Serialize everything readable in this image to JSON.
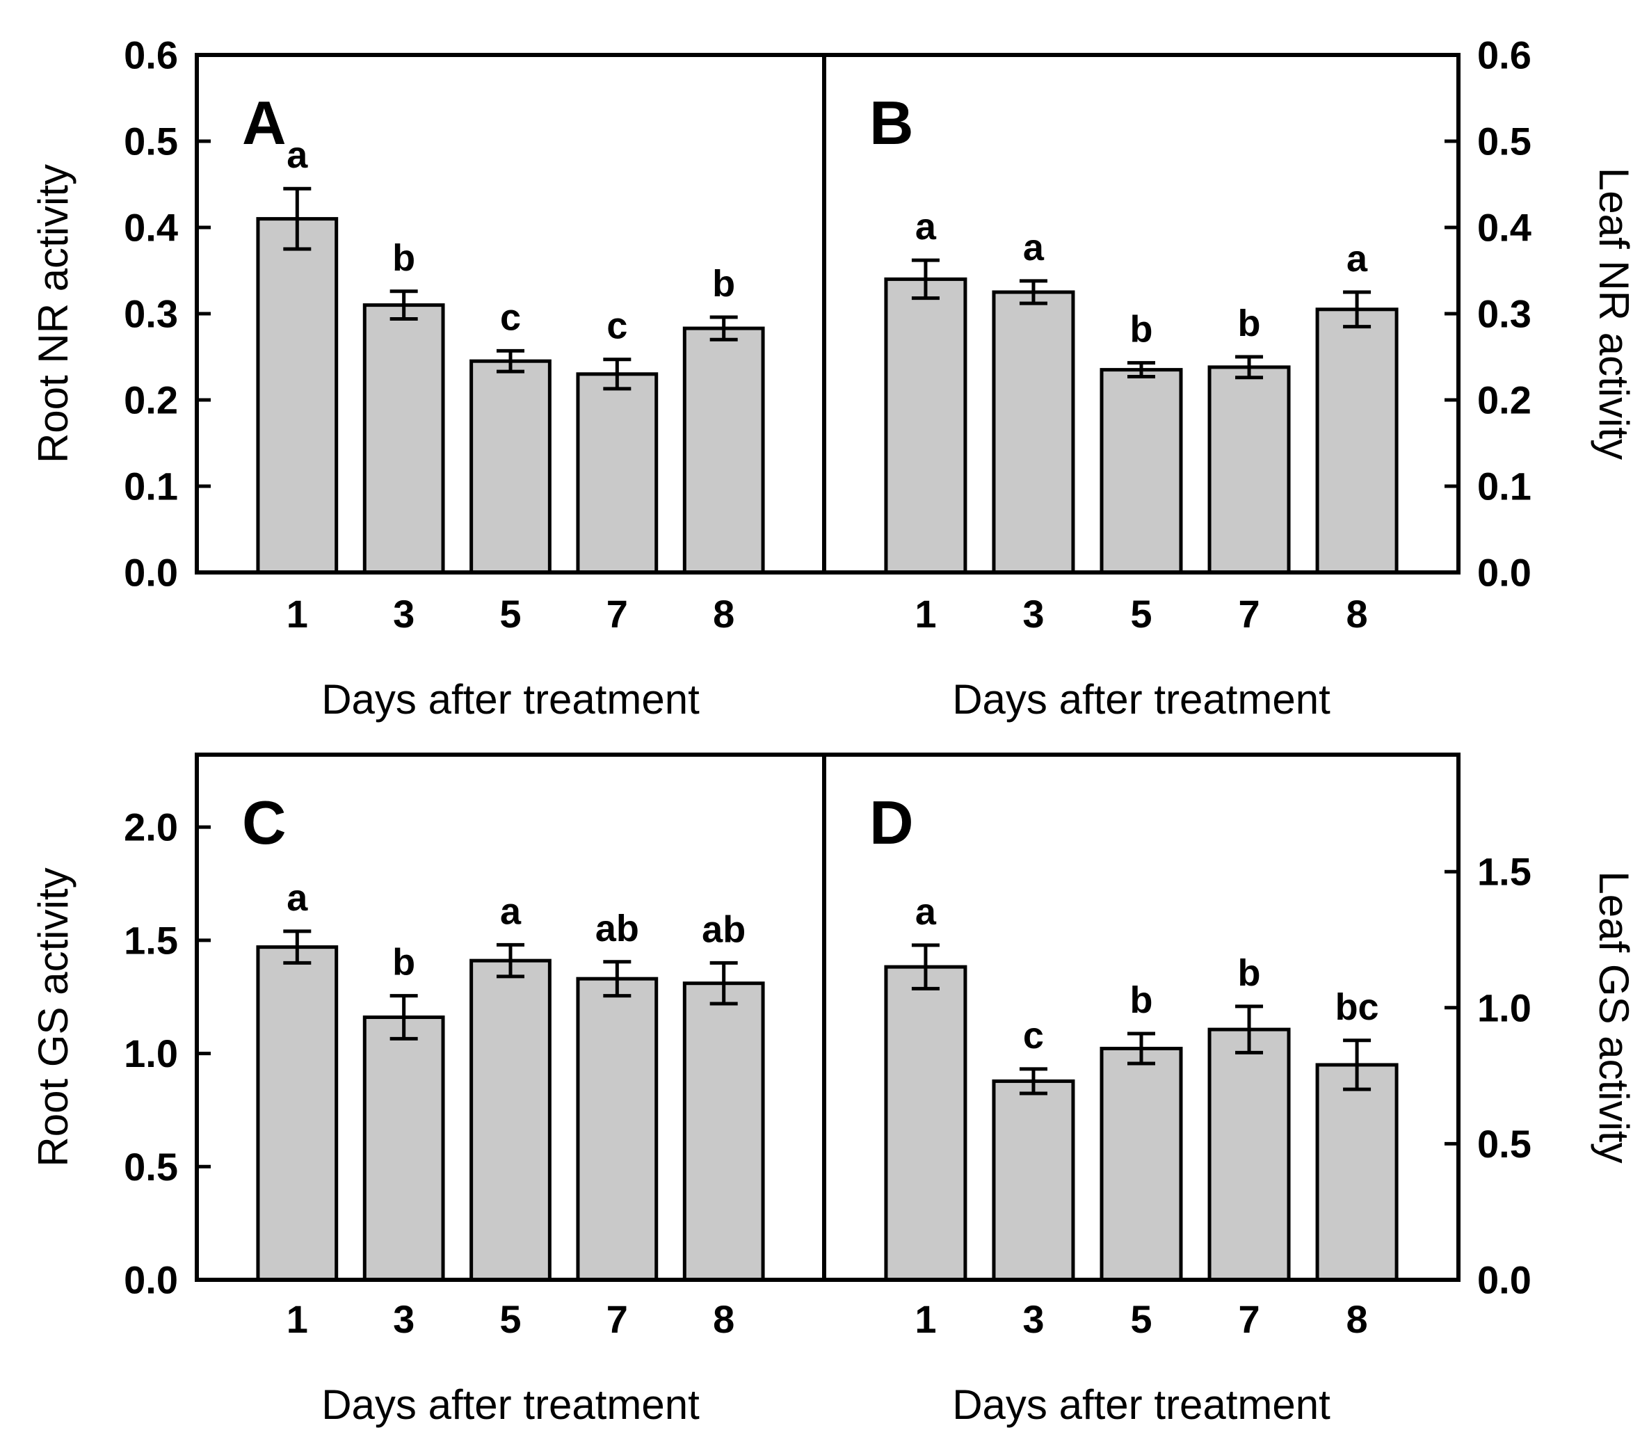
{
  "figure": {
    "background": "#ffffff",
    "text_color": "#000000",
    "bar_fill": "#c9c9c9",
    "bar_stroke": "#000000",
    "x_axis_title": "Days after treatment",
    "x_categories": [
      "1",
      "3",
      "5",
      "7",
      "8"
    ]
  },
  "chart_data": [
    {
      "type": "bar",
      "panel_label": "A",
      "row": 0,
      "col": 0,
      "title": "",
      "ylabel": "Root NR activity",
      "ylabel_side": "left",
      "xlabel": "Days after treatment",
      "categories": [
        "1",
        "3",
        "5",
        "7",
        "8"
      ],
      "values": [
        0.41,
        0.31,
        0.245,
        0.23,
        0.283
      ],
      "errors": [
        0.035,
        0.016,
        0.012,
        0.017,
        0.013
      ],
      "sig_letters": [
        "a",
        "b",
        "c",
        "c",
        "b"
      ],
      "ylim": [
        0,
        0.6
      ],
      "ytick_values": [
        0.0,
        0.1,
        0.2,
        0.3,
        0.4,
        0.5,
        0.6
      ],
      "ytick_labels": [
        "0.0",
        "0.1",
        "0.2",
        "0.3",
        "0.4",
        "0.5",
        "0.6"
      ],
      "ytick_side": "left",
      "grid": false,
      "legend": "none"
    },
    {
      "type": "bar",
      "panel_label": "B",
      "row": 0,
      "col": 1,
      "title": "",
      "ylabel": "Leaf NR activity",
      "ylabel_side": "right",
      "xlabel": "Days after treatment",
      "categories": [
        "1",
        "3",
        "5",
        "7",
        "8"
      ],
      "values": [
        0.34,
        0.325,
        0.235,
        0.238,
        0.305
      ],
      "errors": [
        0.022,
        0.013,
        0.008,
        0.012,
        0.02
      ],
      "sig_letters": [
        "a",
        "a",
        "b",
        "b",
        "a"
      ],
      "ylim": [
        0,
        0.6
      ],
      "ytick_values": [
        0.0,
        0.1,
        0.2,
        0.3,
        0.4,
        0.5,
        0.6
      ],
      "ytick_labels": [
        "0.0",
        "0.1",
        "0.2",
        "0.3",
        "0.4",
        "0.5",
        "0.6"
      ],
      "ytick_side": "right",
      "grid": false,
      "legend": "none"
    },
    {
      "type": "bar",
      "panel_label": "C",
      "row": 1,
      "col": 0,
      "title": "",
      "ylabel": "Root GS activity",
      "ylabel_side": "left",
      "xlabel": "Days after treatment",
      "categories": [
        "1",
        "3",
        "5",
        "7",
        "8"
      ],
      "values": [
        1.47,
        1.16,
        1.41,
        1.33,
        1.31
      ],
      "errors": [
        0.07,
        0.095,
        0.07,
        0.075,
        0.09
      ],
      "sig_letters": [
        "a",
        "b",
        "a",
        "ab",
        "ab"
      ],
      "ylim": [
        0,
        2.32
      ],
      "ytick_values": [
        0.0,
        0.5,
        1.0,
        1.5,
        2.0
      ],
      "ytick_labels": [
        "0.0",
        "0.5",
        "1.0",
        "1.5",
        "2.0"
      ],
      "ytick_side": "left",
      "grid": false,
      "legend": "none"
    },
    {
      "type": "bar",
      "panel_label": "D",
      "row": 1,
      "col": 1,
      "title": "",
      "ylabel": "Leaf GS activity",
      "ylabel_side": "right",
      "xlabel": "Days after treatment",
      "categories": [
        "1",
        "3",
        "5",
        "7",
        "8"
      ],
      "values": [
        1.15,
        0.73,
        0.85,
        0.92,
        0.79
      ],
      "errors": [
        0.08,
        0.045,
        0.055,
        0.085,
        0.09
      ],
      "sig_letters": [
        "a",
        "c",
        "b",
        "b",
        "bc"
      ],
      "ylim": [
        0,
        1.93
      ],
      "ytick_values": [
        0.0,
        0.5,
        1.0,
        1.5
      ],
      "ytick_labels": [
        "0.0",
        "0.5",
        "1.0",
        "1.5"
      ],
      "ytick_side": "right",
      "grid": false,
      "legend": "none"
    }
  ]
}
